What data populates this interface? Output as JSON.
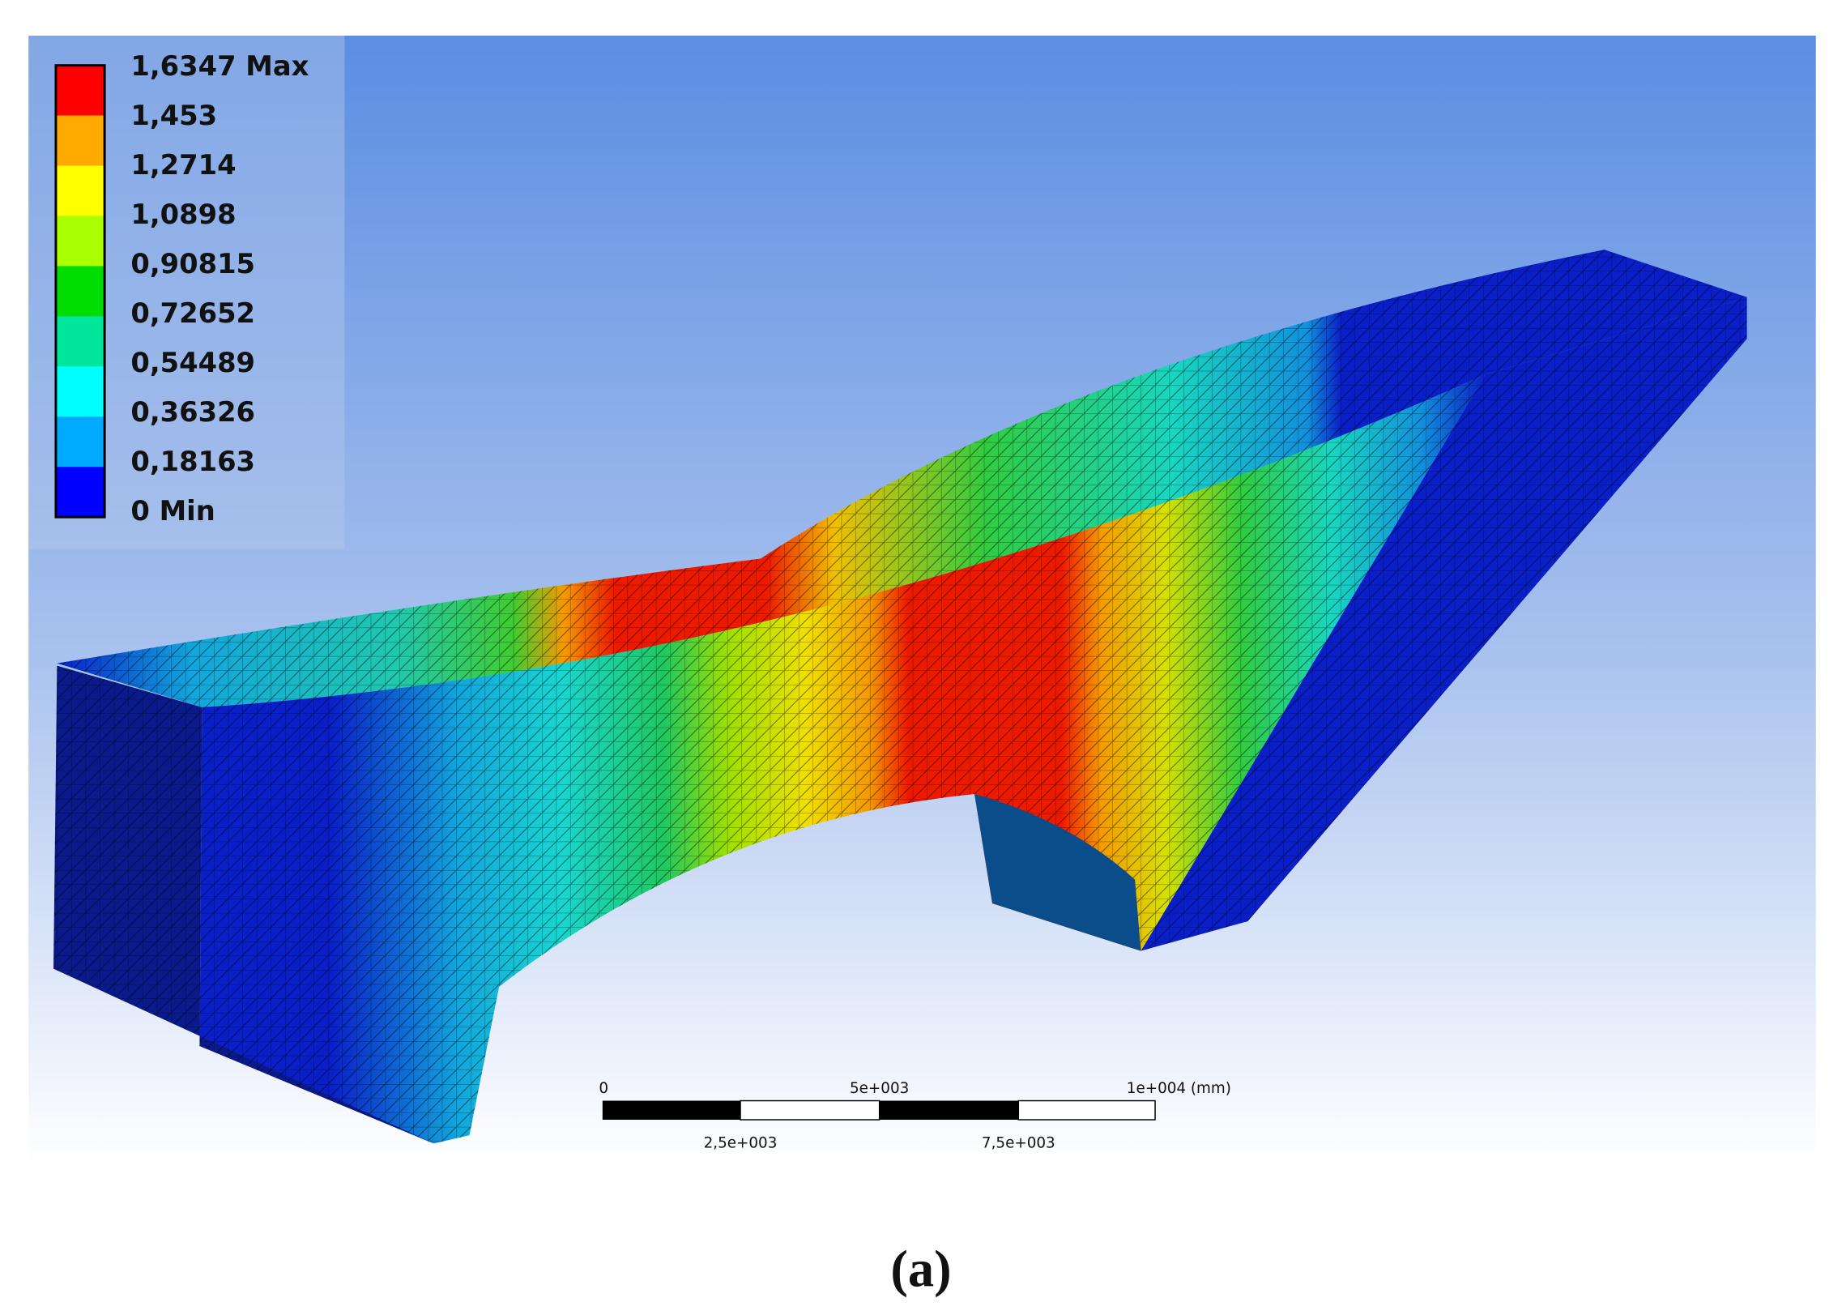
{
  "legend": {
    "labels": [
      "1,6347 Max",
      "1,453",
      "1,2714",
      "1,0898",
      "0,90815",
      "0,72652",
      "0,54489",
      "0,36326",
      "0,18163",
      "0 Min"
    ],
    "colors": [
      "#ff0000",
      "#ffaa00",
      "#ffff00",
      "#aaff00",
      "#00dd00",
      "#00e69a",
      "#00ffff",
      "#00aaff",
      "#0000ff"
    ]
  },
  "scale_bar": {
    "top_labels": [
      "0",
      "5e+003",
      "1e+004 (mm)"
    ],
    "bottom_labels": [
      "2,5e+003",
      "7,5e+003"
    ]
  },
  "caption": "(a)"
}
